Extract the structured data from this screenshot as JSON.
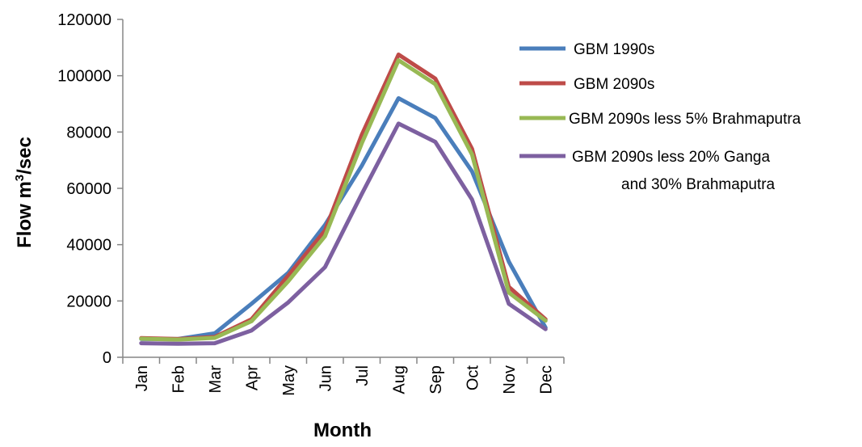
{
  "chart_data": {
    "type": "line",
    "title": "",
    "xlabel": "Month",
    "ylabel": "Flow m³/sec",
    "ylabel_parts": {
      "main": "Flow m",
      "sup": "3",
      "rest": "/sec"
    },
    "ylim": [
      0,
      120000
    ],
    "yticks": [
      0,
      20000,
      40000,
      60000,
      80000,
      100000,
      120000
    ],
    "grid": false,
    "legend_position": "right",
    "categories": [
      "Jan",
      "Feb",
      "Mar",
      "Apr",
      "May",
      "Jun",
      "Jul",
      "Aug",
      "Sep",
      "Oct",
      "Nov",
      "Dec"
    ],
    "series": [
      {
        "name": "GBM 1990s",
        "color": "#4a7ebb",
        "values": [
          6500,
          6500,
          8500,
          19000,
          30000,
          47000,
          68000,
          92000,
          85000,
          66000,
          34000,
          10500
        ]
      },
      {
        "name": "GBM 2090s",
        "color": "#be4b48",
        "values": [
          6800,
          6500,
          7200,
          13500,
          29000,
          45000,
          79000,
          107500,
          99000,
          74000,
          25000,
          13500
        ]
      },
      {
        "name": "GBM  2090s less 5% Brahmaputra",
        "color": "#98b954",
        "values": [
          6600,
          6300,
          6900,
          12800,
          27000,
          43000,
          76000,
          105500,
          97000,
          72000,
          23000,
          13000
        ]
      },
      {
        "name": "GBM 2090s less 20% Ganga",
        "name_line2": "and 30% Brahmaputra",
        "color": "#7d60a0",
        "values": [
          5000,
          4800,
          5000,
          9500,
          19500,
          32000,
          58000,
          83000,
          76500,
          56000,
          19000,
          10000
        ]
      }
    ]
  }
}
